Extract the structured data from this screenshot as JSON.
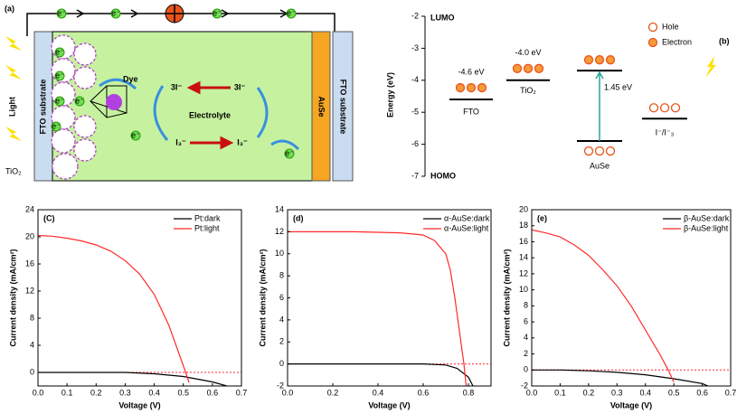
{
  "schematic": {
    "label": "(a)",
    "light": "Light",
    "left_substrate": "FTO substrate",
    "tio2": "TiO₂",
    "dye": "Dye",
    "ion_left": "3I⁻",
    "ion_right": "3I⁻",
    "electrolyte": "Electrolyte",
    "tri_left": "I₃⁻",
    "tri_right": "I₃⁻",
    "counter": "AuSe",
    "right_substrate": "FTO substrate",
    "electron": "e⁻"
  },
  "energy_diagram": {
    "label": "(b)",
    "ylabel": "Energy (eV)",
    "top": "LUMO",
    "bottom": "HOMO",
    "ylim": [
      -7,
      -2
    ],
    "yticks": [
      -7,
      -6,
      -5,
      -4,
      -3,
      -2
    ],
    "levels": [
      {
        "name": "FTO",
        "value": -4.6,
        "label": "-4.6 eV"
      },
      {
        "name": "TiO₂",
        "value": -4.0,
        "label": "-4.0 eV"
      },
      {
        "name": "AuSe",
        "values": [
          -3.7,
          -5.9
        ],
        "gap_label": "1.45 eV"
      },
      {
        "name": "I⁻/I⁻₃",
        "value": -5.2
      }
    ],
    "legend": [
      "Hole",
      "Electron"
    ]
  },
  "chart_data": [
    {
      "type": "line",
      "label": "(C)",
      "xlabel": "Voltage (V)",
      "ylabel": "Current density (mA/cm²)",
      "xlim": [
        0,
        0.7
      ],
      "xticks": [
        {
          "value": 0,
          "label": "0.0"
        },
        0.1,
        0.2,
        0.3,
        0.4,
        0.5,
        0.6,
        0.7
      ],
      "ylim": [
        -2,
        24
      ],
      "yticks": [
        0,
        4,
        8,
        12,
        16,
        20,
        24
      ],
      "zero_line": true,
      "legend": "upper right",
      "series": [
        {
          "name": "Pt:dark",
          "color": "#000000",
          "x": [
            0,
            0.1,
            0.2,
            0.3,
            0.4,
            0.5,
            0.6,
            0.65
          ],
          "values": [
            0,
            0,
            0,
            0,
            -0.2,
            -0.6,
            -1.4,
            -2
          ]
        },
        {
          "name": "Pt:light",
          "color": "#ff2a2a",
          "x": [
            0,
            0.05,
            0.1,
            0.15,
            0.2,
            0.25,
            0.3,
            0.35,
            0.4,
            0.45,
            0.5,
            0.52
          ],
          "values": [
            20.2,
            20.1,
            19.8,
            19.4,
            18.8,
            17.9,
            16.5,
            14.5,
            11.5,
            7,
            1,
            -1.5
          ]
        }
      ]
    },
    {
      "type": "line",
      "label": "(d)",
      "xlabel": "Voltage (V)",
      "ylabel": "Current density (mA/cm²)",
      "xlim": [
        0,
        0.9
      ],
      "xticks": [
        {
          "value": 0,
          "label": "0.0"
        },
        0.2,
        0.4,
        0.6,
        0.8
      ],
      "ylim": [
        -2,
        14
      ],
      "yticks": [
        -2,
        0,
        2,
        4,
        6,
        8,
        10,
        12,
        14
      ],
      "zero_line": true,
      "legend": "upper right",
      "series": [
        {
          "name": "α-AuSe:dark",
          "color": "#000000",
          "x": [
            0,
            0.3,
            0.6,
            0.7,
            0.75,
            0.8,
            0.82
          ],
          "values": [
            0,
            0,
            0,
            -0.1,
            -0.4,
            -1.2,
            -2
          ]
        },
        {
          "name": "α-AuSe:light",
          "color": "#ff2a2a",
          "x": [
            0,
            0.3,
            0.5,
            0.6,
            0.65,
            0.7,
            0.72,
            0.74,
            0.76,
            0.78,
            0.79
          ],
          "values": [
            12,
            12,
            11.9,
            11.7,
            11.2,
            10,
            8.5,
            6,
            3,
            0,
            -2
          ]
        }
      ]
    },
    {
      "type": "line",
      "label": "(e)",
      "xlabel": "Voltage (V)",
      "ylabel": "Current density (mA/cm²)",
      "xlim": [
        0,
        0.7
      ],
      "xticks": [
        {
          "value": 0,
          "label": "0.0"
        },
        0.1,
        0.2,
        0.3,
        0.4,
        0.5,
        0.6,
        0.7
      ],
      "ylim": [
        -2,
        20
      ],
      "yticks": [
        -2,
        0,
        2,
        4,
        6,
        8,
        10,
        12,
        14,
        16,
        18,
        20
      ],
      "zero_line": true,
      "legend": "upper right",
      "series": [
        {
          "name": "β-AuSe:dark",
          "color": "#000000",
          "x": [
            0,
            0.1,
            0.2,
            0.3,
            0.4,
            0.5,
            0.6,
            0.62
          ],
          "values": [
            0,
            0,
            -0.1,
            -0.3,
            -0.6,
            -1.1,
            -1.7,
            -2
          ]
        },
        {
          "name": "β-AuSe:light",
          "color": "#ff2a2a",
          "x": [
            0,
            0.05,
            0.1,
            0.15,
            0.2,
            0.25,
            0.3,
            0.35,
            0.4,
            0.45,
            0.48,
            0.5
          ],
          "values": [
            17.5,
            17.1,
            16.6,
            15.6,
            14.3,
            12.5,
            10.5,
            8,
            5,
            2,
            0,
            -1.5
          ]
        }
      ]
    }
  ]
}
